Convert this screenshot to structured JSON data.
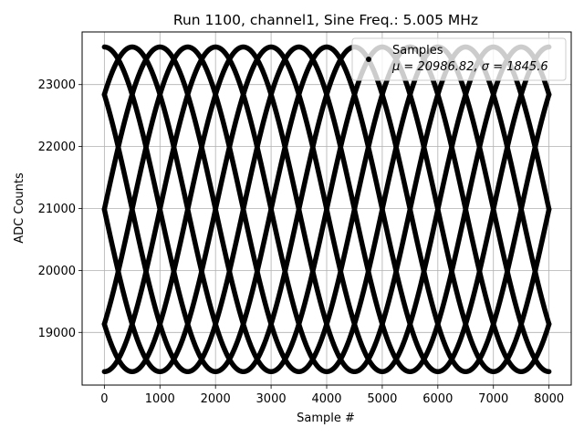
{
  "chart_data": {
    "type": "scatter",
    "title": "Run 1100, channel1, Sine Freq.: 5.005 MHz",
    "xlabel": "Sample #",
    "ylabel": "ADC Counts",
    "xlim": [
      -400,
      8400
    ],
    "ylim": [
      18150,
      23850
    ],
    "xticks": [
      0,
      1000,
      2000,
      3000,
      4000,
      5000,
      6000,
      7000,
      8000
    ],
    "yticks": [
      19000,
      20000,
      21000,
      22000,
      23000
    ],
    "grid": true,
    "legend": {
      "placement": "top-right",
      "entries": [
        {
          "name": "Samples",
          "stats": "μ = 20986.82, σ = 1845.6"
        }
      ]
    },
    "series": [
      {
        "name": "Samples",
        "color": "#000000",
        "x_range": [
          0,
          8000
        ],
        "mean": 20986.82,
        "sigma": 1845.6,
        "amplitude": 2620,
        "interleave_count": 8,
        "full_period_samples": 4000,
        "phases_deg": [
          90,
          135,
          180,
          225,
          270,
          315,
          0,
          45
        ]
      }
    ]
  }
}
